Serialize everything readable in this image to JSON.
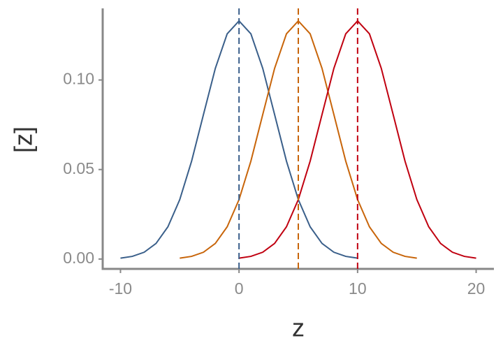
{
  "chart_data": {
    "type": "line",
    "xlabel": "z",
    "ylabel": "[z]",
    "xlim": [
      -11.5,
      21.5
    ],
    "xticks": [
      -10,
      0,
      10,
      20
    ],
    "ylim": [
      -0.0055,
      0.14
    ],
    "yticks": [
      {
        "value": 0,
        "label": "0.00"
      },
      {
        "value": 0.05,
        "label": "0.05"
      },
      {
        "value": 0.1,
        "label": "0.10"
      }
    ],
    "series": [
      {
        "color": "#3a5f8a",
        "x": [
          -10,
          -9,
          -8,
          -7,
          -6,
          -5,
          -4,
          -3,
          -2,
          -1,
          0,
          1,
          2,
          3,
          4,
          5,
          6,
          7,
          8,
          9,
          10
        ],
        "values": [
          0.0005,
          0.0015,
          0.0038,
          0.0087,
          0.018,
          0.0332,
          0.0547,
          0.0807,
          0.1065,
          0.1258,
          0.133,
          0.1258,
          0.1065,
          0.0807,
          0.0547,
          0.0332,
          0.018,
          0.0087,
          0.0038,
          0.0015,
          0.0005
        ]
      },
      {
        "color": "#c8650a",
        "x": [
          -5,
          -4,
          -3,
          -2,
          -1,
          0,
          1,
          2,
          3,
          4,
          5,
          6,
          7,
          8,
          9,
          10,
          11,
          12,
          13,
          14,
          15
        ],
        "values": [
          0.0005,
          0.0015,
          0.0038,
          0.0087,
          0.018,
          0.0332,
          0.0547,
          0.0807,
          0.1065,
          0.1258,
          0.133,
          0.1258,
          0.1065,
          0.0807,
          0.0547,
          0.0332,
          0.018,
          0.0087,
          0.0038,
          0.0015,
          0.0005
        ]
      },
      {
        "color": "#c00010",
        "x": [
          0,
          1,
          2,
          3,
          4,
          5,
          6,
          7,
          8,
          9,
          10,
          11,
          12,
          13,
          14,
          15,
          16,
          17,
          18,
          19,
          20
        ],
        "values": [
          0.0005,
          0.0015,
          0.0038,
          0.0087,
          0.018,
          0.0332,
          0.0547,
          0.0807,
          0.1065,
          0.1258,
          0.133,
          0.1258,
          0.1065,
          0.0807,
          0.0547,
          0.0332,
          0.018,
          0.0087,
          0.0038,
          0.0015,
          0.0005
        ]
      }
    ],
    "vlines": [
      {
        "x": 0,
        "color": "#3a5f8a"
      },
      {
        "x": 5,
        "color": "#c8650a"
      },
      {
        "x": 10,
        "color": "#c00010"
      }
    ]
  }
}
